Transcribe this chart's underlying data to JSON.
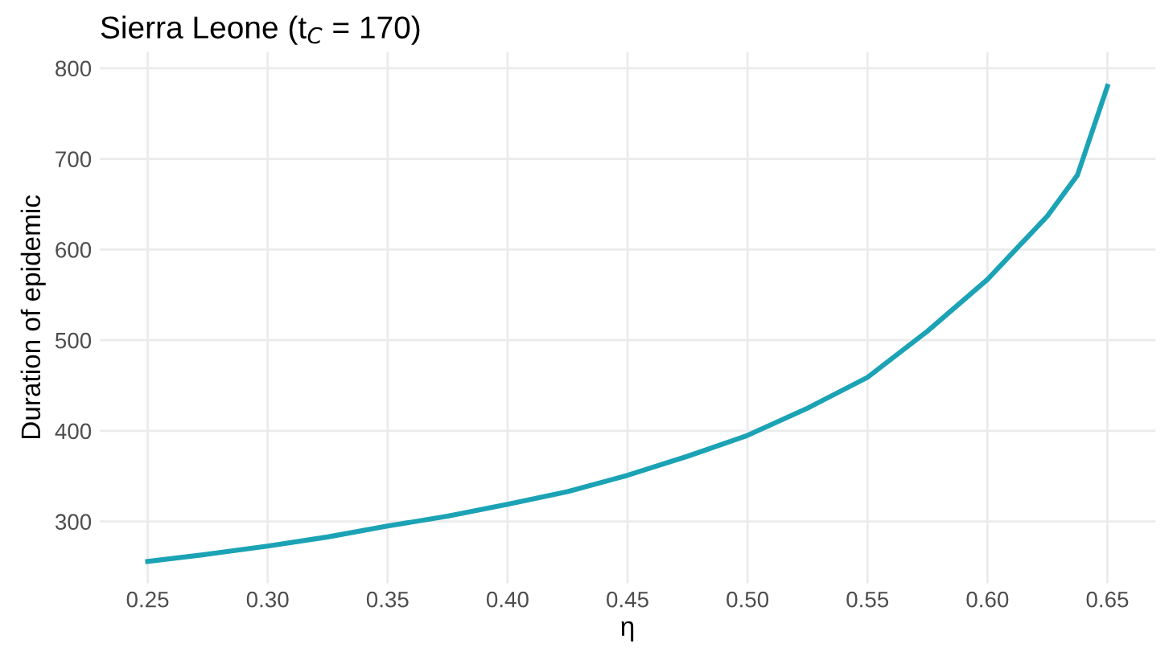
{
  "chart_data": {
    "type": "line",
    "title": "Sierra Leone (t$_{C}$ = 170)",
    "xlabel": "η",
    "ylabel": "Duration of epidemic",
    "x": [
      0.25,
      0.275,
      0.3,
      0.325,
      0.35,
      0.375,
      0.4,
      0.425,
      0.45,
      0.475,
      0.5,
      0.525,
      0.55,
      0.575,
      0.6,
      0.625,
      0.6375,
      0.65
    ],
    "series": [
      {
        "color": "#1ba3b5",
        "values": [
          256,
          264,
          273,
          283,
          295,
          306,
          319,
          333,
          351,
          372,
          395,
          425,
          459,
          510,
          567,
          637,
          682,
          780
        ]
      }
    ],
    "xlim": [
      0.23,
      0.67
    ],
    "ylim": [
      232,
      818
    ],
    "xticks": [
      0.25,
      {
        "value": 0.3,
        "label": "0.30"
      },
      0.35,
      {
        "value": 0.4,
        "label": "0.40"
      },
      0.45,
      {
        "value": 0.5,
        "label": "0.50"
      },
      0.55,
      {
        "value": 0.6,
        "label": "0.60"
      },
      0.65
    ],
    "yticks": [
      300,
      400,
      500,
      600,
      700,
      800
    ],
    "grid": true,
    "legend": false
  }
}
